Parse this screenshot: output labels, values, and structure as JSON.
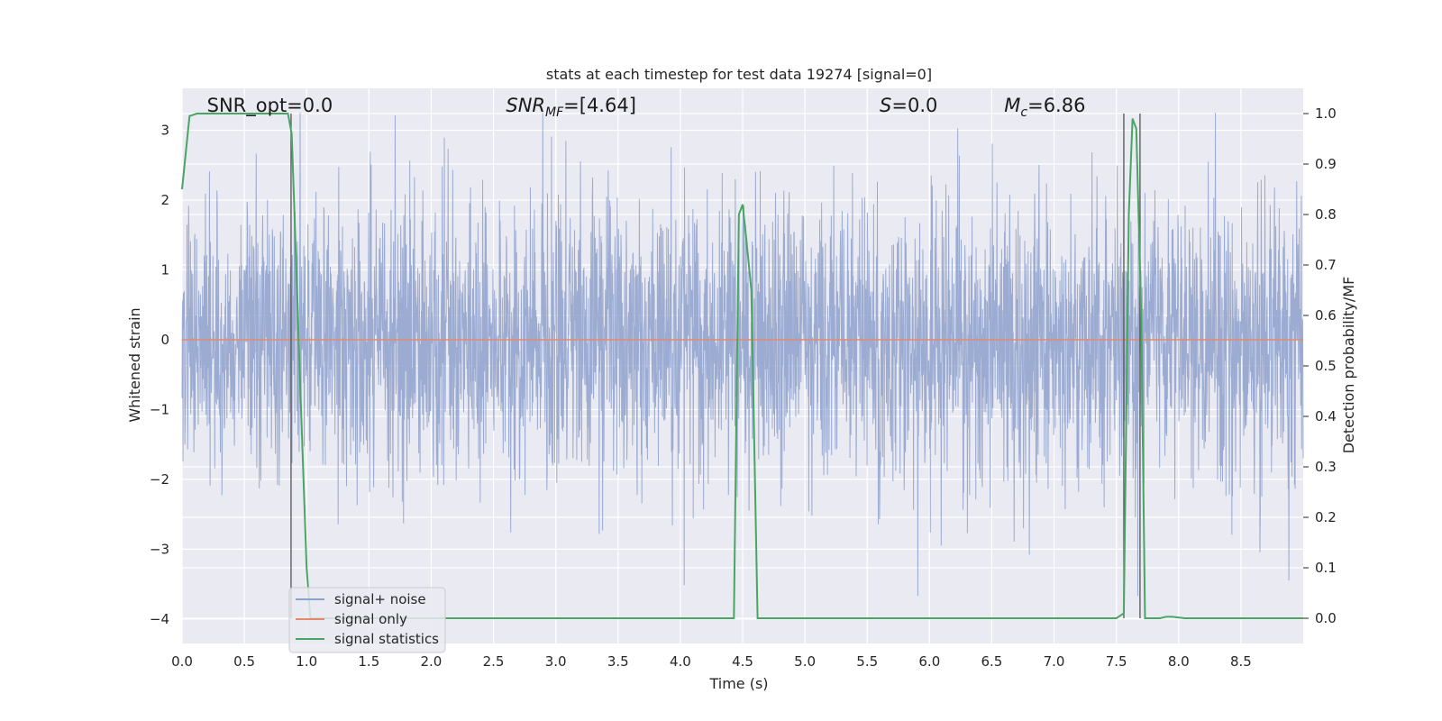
{
  "chart_data": {
    "type": "line",
    "title": "stats at each timestep for test data 19274 [signal=0]",
    "xlabel": "Time (s)",
    "ylabel": "Whitened strain",
    "y2label": "Detection probability/MF",
    "xlim": [
      0.0,
      9.0
    ],
    "ylim": [
      -4.35,
      3.6
    ],
    "y2lim": [
      -0.05,
      1.05
    ],
    "xticks": [
      "0.0",
      "0.5",
      "1.0",
      "1.5",
      "2.0",
      "2.5",
      "3.0",
      "3.5",
      "4.0",
      "4.5",
      "5.0",
      "5.5",
      "6.0",
      "6.5",
      "7.0",
      "7.5",
      "8.0",
      "8.5"
    ],
    "yticks": [
      "3",
      "2",
      "1",
      "0",
      "−1",
      "−2",
      "−3",
      "−4"
    ],
    "y2ticks": [
      "1.0",
      "0.9",
      "0.8",
      "0.7",
      "0.6",
      "0.5",
      "0.4",
      "0.3",
      "0.2",
      "0.1",
      "0.0"
    ],
    "grid": true,
    "legend_position": "lower-left",
    "annotations": [
      {
        "text": "SNR_opt=0.0",
        "x": 0.2
      },
      {
        "text": "SNR",
        "sub": "MF",
        "suffix": "=[4.64]",
        "x": 2.6
      },
      {
        "text": "S",
        "suffix": "=0.0",
        "x": 5.6
      },
      {
        "text": "M",
        "sub": "c",
        "suffix": "=6.86",
        "x": 6.6
      }
    ],
    "series": [
      {
        "name": "signal+ noise",
        "color": "#8da0cb",
        "note": "dense whitened noise trace",
        "envelope_sigma": 1.0,
        "y_min_observed": -3.95,
        "y_max_observed": 3.25
      },
      {
        "name": "signal only",
        "color": "#e5896c",
        "x": [
          0.0,
          9.0
        ],
        "y": [
          0.0,
          0.0
        ]
      },
      {
        "name": "signal statistics",
        "color": "#4aa564",
        "axis": "right",
        "x": [
          0.0,
          0.06,
          0.12,
          0.85,
          0.88,
          0.9,
          0.95,
          1.0,
          1.03,
          4.43,
          4.47,
          4.5,
          4.53,
          4.57,
          4.62,
          7.5,
          7.56,
          7.6,
          7.63,
          7.66,
          7.7,
          7.73,
          7.77,
          7.85,
          7.9,
          7.95,
          8.05,
          9.0
        ],
        "y": [
          0.85,
          0.995,
          1.0,
          1.0,
          0.96,
          0.82,
          0.45,
          0.1,
          0.0,
          0.0,
          0.8,
          0.82,
          0.75,
          0.65,
          0.0,
          0.0,
          0.01,
          0.8,
          0.99,
          0.97,
          0.6,
          0.0,
          0.0,
          0.0,
          0.003,
          0.003,
          0.0,
          0.0
        ]
      }
    ],
    "vertical_markers": [
      {
        "x": 0.875,
        "color": "#555555"
      },
      {
        "x": 7.56,
        "color": "#555555"
      },
      {
        "x": 7.69,
        "color": "#555555"
      }
    ]
  }
}
